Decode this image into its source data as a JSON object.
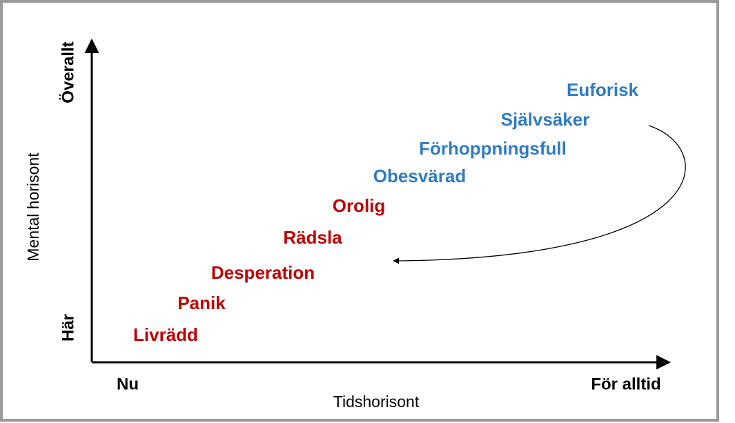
{
  "axes": {
    "y_top": "Överallt",
    "y_bottom": "Här",
    "y_title": "Mental horisont",
    "x_left": "Nu",
    "x_right": "För alltid",
    "x_title": "Tidshorisont"
  },
  "terms": [
    {
      "label": "Livrädd",
      "color": "#c00000"
    },
    {
      "label": "Panik",
      "color": "#c00000"
    },
    {
      "label": "Desperation",
      "color": "#c00000"
    },
    {
      "label": "Rädsla",
      "color": "#c00000"
    },
    {
      "label": "Orolig",
      "color": "#c00000"
    },
    {
      "label": "Obesvärad",
      "color": "#2e7bc4"
    },
    {
      "label": "Förhoppningsfull",
      "color": "#2e7bc4"
    },
    {
      "label": "Självsäker",
      "color": "#2e7bc4"
    },
    {
      "label": "Euforisk",
      "color": "#2e7bc4"
    }
  ]
}
